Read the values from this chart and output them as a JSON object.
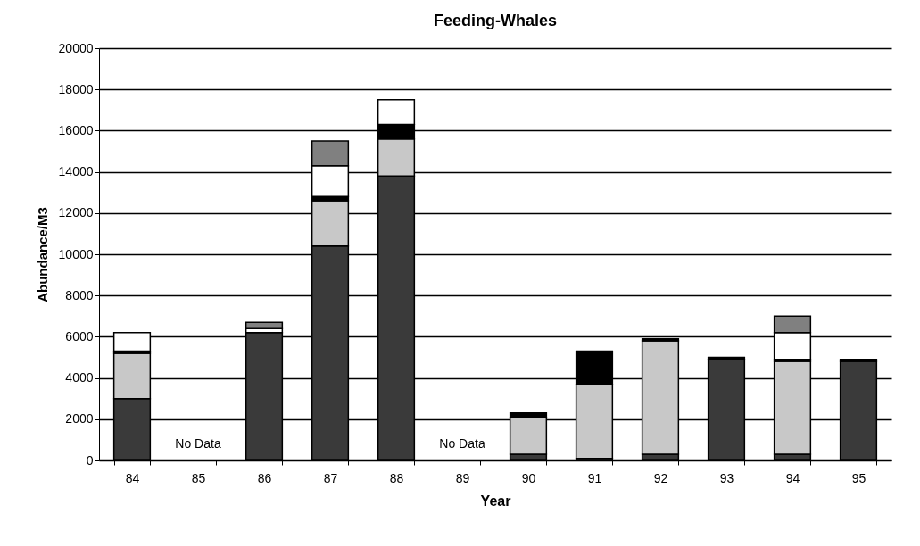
{
  "chart_data": {
    "type": "bar",
    "title": "Feeding-Whales",
    "xlabel": "Year",
    "ylabel": "Abundance/M3",
    "categories": [
      "84",
      "85",
      "86",
      "87",
      "88",
      "89",
      "90",
      "91",
      "92",
      "93",
      "94",
      "95"
    ],
    "stacked": true,
    "series": [
      {
        "color": "#3a3a3a",
        "values": [
          3000,
          null,
          6200,
          10400,
          13800,
          null,
          300,
          100,
          300,
          4900,
          300,
          4800
        ]
      },
      {
        "color": "#c8c8c8",
        "values": [
          2200,
          null,
          null,
          2200,
          1800,
          null,
          1800,
          3600,
          5500,
          null,
          4500,
          null
        ]
      },
      {
        "color": "#000000",
        "values": [
          100,
          null,
          null,
          200,
          700,
          null,
          200,
          1600,
          100,
          100,
          100,
          100
        ]
      },
      {
        "color": "#ffffff",
        "values": [
          900,
          null,
          200,
          1500,
          1200,
          null,
          null,
          null,
          null,
          null,
          1300,
          null
        ]
      },
      {
        "color": "#808080",
        "values": [
          null,
          null,
          300,
          1200,
          null,
          null,
          null,
          null,
          null,
          null,
          800,
          null
        ]
      }
    ],
    "ylim": [
      0,
      20000
    ],
    "yticks": [
      0,
      2000,
      4000,
      6000,
      8000,
      10000,
      12000,
      14000,
      16000,
      18000,
      20000
    ],
    "grid": "y",
    "legend": false,
    "annotations": [
      "No Data",
      "No Data"
    ]
  }
}
